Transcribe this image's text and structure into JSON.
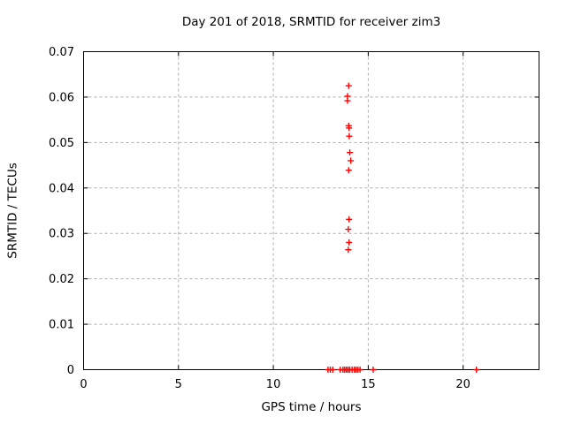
{
  "window": {
    "background": "#ffffff"
  },
  "chart_data": {
    "type": "scatter",
    "title": "Day 201 of 2018, SRMTID for receiver zim3",
    "xlabel": "GPS time / hours",
    "ylabel": "SRMTID / TECUs",
    "xlim": [
      0,
      24
    ],
    "ylim": [
      0,
      0.07
    ],
    "xticks": [
      0,
      5,
      10,
      15,
      20
    ],
    "xtick_labels": [
      "0",
      "5",
      "10",
      "15",
      "20"
    ],
    "yticks": [
      0,
      0.01,
      0.02,
      0.03,
      0.04,
      0.05,
      0.06,
      0.07
    ],
    "ytick_labels": [
      "0",
      "0.01",
      "0.02",
      "0.03",
      "0.04",
      "0.05",
      "0.06",
      "0.07"
    ],
    "grid": true,
    "grid_style": "dashed",
    "grid_color": "#ababab",
    "border_color": "#000000",
    "legend": false,
    "marker": "plus",
    "marker_color": "#ff0000",
    "series": [
      {
        "name": "srmtid-points",
        "points": [
          [
            13.97,
            0.0625
          ],
          [
            13.91,
            0.0602
          ],
          [
            13.91,
            0.0592
          ],
          [
            13.97,
            0.0537
          ],
          [
            13.99,
            0.0532
          ],
          [
            14.0,
            0.0514
          ],
          [
            14.03,
            0.0478
          ],
          [
            14.08,
            0.046
          ],
          [
            13.97,
            0.0439
          ],
          [
            13.99,
            0.0331
          ],
          [
            13.95,
            0.0309
          ],
          [
            13.99,
            0.028
          ],
          [
            13.95,
            0.0264
          ],
          [
            12.88,
            0
          ],
          [
            13.0,
            0
          ],
          [
            13.13,
            0
          ],
          [
            13.52,
            0
          ],
          [
            13.67,
            0
          ],
          [
            13.76,
            0
          ],
          [
            13.85,
            0
          ],
          [
            13.94,
            0
          ],
          [
            14.03,
            0
          ],
          [
            14.15,
            0
          ],
          [
            14.27,
            0
          ],
          [
            14.36,
            0
          ],
          [
            14.46,
            0
          ],
          [
            14.57,
            0
          ],
          [
            15.26,
            0
          ],
          [
            20.7,
            0
          ]
        ]
      }
    ]
  }
}
